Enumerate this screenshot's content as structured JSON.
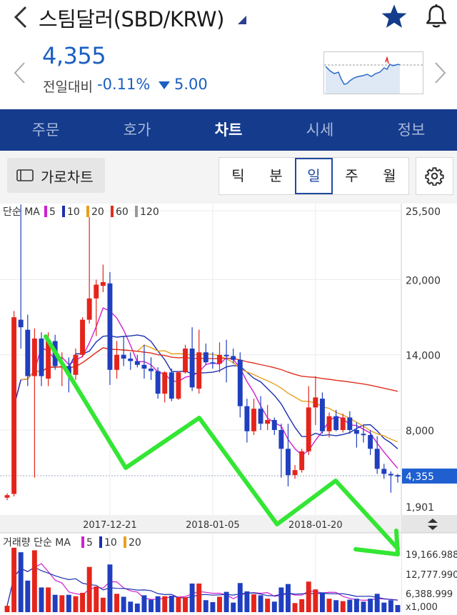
{
  "header": {
    "title": "스팀달러(SBD/KRW)",
    "price": "4,355",
    "change_label": "전일대비",
    "change_pct": "-0.11%",
    "change_val": "5.00"
  },
  "tabs": [
    {
      "label": "주문",
      "active": false
    },
    {
      "label": "호가",
      "active": false
    },
    {
      "label": "차트",
      "active": true
    },
    {
      "label": "시세",
      "active": false
    },
    {
      "label": "정보",
      "active": false
    }
  ],
  "toolbar": {
    "landscape_label": "가로차트",
    "periods": [
      {
        "label": "틱",
        "active": false
      },
      {
        "label": "분",
        "active": false
      },
      {
        "label": "일",
        "active": true
      },
      {
        "label": "주",
        "active": false
      },
      {
        "label": "월",
        "active": false
      }
    ]
  },
  "chart_data": {
    "type": "candlestick",
    "ma_legend": {
      "label": "단순 MA",
      "items": [
        {
          "name": "5",
          "color": "#d020d0"
        },
        {
          "name": "10",
          "color": "#1a2fb0"
        },
        {
          "name": "20",
          "color": "#e8a020"
        },
        {
          "name": "60",
          "color": "#e03020"
        },
        {
          "name": "120",
          "color": "#999999"
        }
      ]
    },
    "y_ticks": [
      "25,500",
      "20,000",
      "14,000",
      "8,000",
      "1,901"
    ],
    "current_price_label": "4,355",
    "x_ticks": [
      "2017-12-21",
      "2018-01-05",
      "2018-01-20"
    ],
    "colors": {
      "up": "#e5241b",
      "down": "#1f3fbf",
      "price_badge": "#1f5fd0",
      "annotation": "#2ee82e"
    },
    "candles": [
      [
        2600,
        2950,
        2400,
        2800
      ],
      [
        2900,
        17500,
        2700,
        17000
      ],
      [
        16800,
        26000,
        14500,
        16200
      ],
      [
        16000,
        17200,
        11500,
        12300
      ],
      [
        12300,
        16100,
        4200,
        15300
      ],
      [
        15300,
        15800,
        11500,
        12300
      ],
      [
        12100,
        15800,
        11500,
        15200
      ],
      [
        15100,
        15600,
        12800,
        13100
      ],
      [
        13100,
        14200,
        11500,
        13100
      ],
      [
        13100,
        13800,
        11000,
        12400
      ],
      [
        12400,
        14500,
        12000,
        14000
      ],
      [
        14000,
        17000,
        13800,
        16800
      ],
      [
        16800,
        25000,
        16500,
        18500
      ],
      [
        18500,
        20000,
        15500,
        19600
      ],
      [
        19500,
        21200,
        19000,
        19800
      ],
      [
        19700,
        20600,
        11600,
        12800
      ],
      [
        12800,
        15100,
        12100,
        14000
      ],
      [
        14000,
        15500,
        13100,
        13700
      ],
      [
        13700,
        14200,
        12800,
        13500
      ],
      [
        13500,
        14000,
        13000,
        13200
      ],
      [
        13200,
        14800,
        12100,
        12900
      ],
      [
        12900,
        13800,
        12000,
        12700
      ],
      [
        12700,
        13000,
        10500,
        10900
      ],
      [
        10900,
        12700,
        10200,
        12600
      ],
      [
        12600,
        12900,
        10300,
        10500
      ],
      [
        10500,
        12700,
        10400,
        12600
      ],
      [
        12600,
        14800,
        12500,
        14500
      ],
      [
        14500,
        16200,
        11100,
        11400
      ],
      [
        11300,
        16000,
        10900,
        14200
      ],
      [
        14200,
        14900,
        13200,
        13400
      ],
      [
        13400,
        14200,
        12900,
        13300
      ],
      [
        13300,
        15000,
        12600,
        14000
      ],
      [
        14000,
        15200,
        11800,
        13900
      ],
      [
        13900,
        14500,
        13300,
        13600
      ],
      [
        13600,
        14200,
        9000,
        9900
      ],
      [
        9900,
        10500,
        7000,
        7900
      ],
      [
        7900,
        10500,
        7600,
        9700
      ],
      [
        9700,
        10700,
        8000,
        8500
      ],
      [
        8500,
        10000,
        8000,
        8800
      ],
      [
        8800,
        9000,
        7600,
        8000
      ],
      [
        8000,
        8500,
        4200,
        6500
      ],
      [
        6500,
        8500,
        3500,
        4400
      ],
      [
        4400,
        5200,
        4100,
        4800
      ],
      [
        4800,
        6500,
        4600,
        6300
      ],
      [
        6300,
        11500,
        6000,
        9800
      ],
      [
        9800,
        12300,
        8400,
        10600
      ],
      [
        10500,
        11000,
        7700,
        7900
      ],
      [
        7900,
        9400,
        7400,
        9100
      ],
      [
        9100,
        9600,
        7900,
        8000
      ],
      [
        8000,
        9300,
        7800,
        9000
      ],
      [
        9000,
        9500,
        7700,
        8000
      ],
      [
        8000,
        8600,
        6600,
        7700
      ],
      [
        7700,
        8400,
        7000,
        7600
      ],
      [
        7600,
        8000,
        6000,
        6500
      ],
      [
        6500,
        7500,
        4500,
        4900
      ],
      [
        4900,
        5300,
        4100,
        4500
      ],
      [
        4500,
        4700,
        3000,
        4400
      ],
      [
        4400,
        4500,
        3800,
        4355
      ]
    ],
    "volume_ticks": [
      "19,166.988",
      "12,777.990",
      "6,388.999",
      "x1,000"
    ]
  }
}
